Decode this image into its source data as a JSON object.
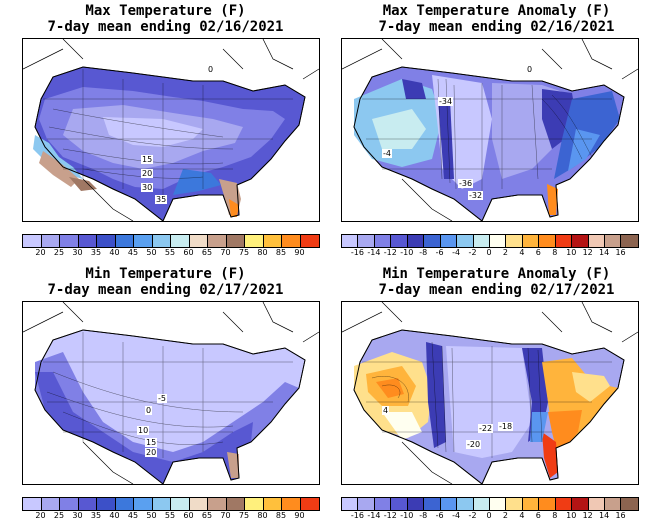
{
  "panels": [
    {
      "id": "max-temp",
      "title_line1": "Max Temperature (F)",
      "title_line2": "7-day mean ending 02/16/2021",
      "colorbar": {
        "ticks": [
          "20",
          "25",
          "30",
          "35",
          "40",
          "45",
          "50",
          "55",
          "60",
          "65",
          "70",
          "75",
          "80",
          "85",
          "90"
        ],
        "colors": [
          "#c8c8ff",
          "#a8a8f0",
          "#8080e6",
          "#5858d2",
          "#3c50c8",
          "#3c78dc",
          "#5aa0f0",
          "#8cc8f0",
          "#c8ecf0",
          "#f0dcc8",
          "#c8a08c",
          "#a07864",
          "#fff07c",
          "#ffc03c",
          "#ff8c1e",
          "#f03c14"
        ]
      },
      "labels": [
        {
          "text": "15",
          "name": "contour-label-15"
        },
        {
          "text": "20",
          "name": "contour-label-20"
        },
        {
          "text": "30",
          "name": "contour-label-30"
        },
        {
          "text": "35",
          "name": "contour-label-35"
        },
        {
          "text": "0",
          "name": "contour-label-0"
        }
      ]
    },
    {
      "id": "max-anom",
      "title_line1": "Max Temperature Anomaly (F)",
      "title_line2": "7-day mean ending 02/16/2021",
      "colorbar": {
        "ticks": [
          "-16",
          "-14",
          "-12",
          "-10",
          "-8",
          "-6",
          "-4",
          "-2",
          "0",
          "2",
          "4",
          "6",
          "8",
          "10",
          "12",
          "14",
          "16"
        ],
        "colors": [
          "#c8c8ff",
          "#a8a8f0",
          "#8080e6",
          "#5858d2",
          "#3c3cb4",
          "#3c64d2",
          "#5a96f0",
          "#8cc8f0",
          "#c8ecf0",
          "#fffff0",
          "#ffe08c",
          "#ffb43c",
          "#ff8c1e",
          "#f03c14",
          "#b41414",
          "#f0c8b4",
          "#c8a08c",
          "#8c6450"
        ]
      },
      "labels": [
        {
          "text": "-34",
          "name": "contour-label-minus34"
        },
        {
          "text": "-4",
          "name": "contour-label-minus4"
        },
        {
          "text": "-36",
          "name": "contour-label-minus36"
        },
        {
          "text": "-32",
          "name": "contour-label-minus32"
        },
        {
          "text": "0",
          "name": "contour-label-0"
        }
      ]
    },
    {
      "id": "min-temp",
      "title_line1": "Min Temperature (F)",
      "title_line2": "7-day mean ending 02/17/2021",
      "colorbar": {
        "ticks": [
          "20",
          "25",
          "30",
          "35",
          "40",
          "45",
          "50",
          "55",
          "60",
          "65",
          "70",
          "75",
          "80",
          "85",
          "90"
        ],
        "colors": [
          "#c8c8ff",
          "#a8a8f0",
          "#8080e6",
          "#5858d2",
          "#3c50c8",
          "#3c78dc",
          "#5aa0f0",
          "#8cc8f0",
          "#c8ecf0",
          "#f0dcc8",
          "#c8a08c",
          "#a07864",
          "#fff07c",
          "#ffc03c",
          "#ff8c1e",
          "#f03c14"
        ]
      },
      "labels": [
        {
          "text": "-5",
          "name": "contour-label-minus5"
        },
        {
          "text": "0",
          "name": "contour-label-0"
        },
        {
          "text": "10",
          "name": "contour-label-10"
        },
        {
          "text": "15",
          "name": "contour-label-15"
        },
        {
          "text": "20",
          "name": "contour-label-20"
        }
      ]
    },
    {
      "id": "min-anom",
      "title_line1": "Min Temperature Anomaly (F)",
      "title_line2": "7-day mean ending 02/17/2021",
      "colorbar": {
        "ticks": [
          "-16",
          "-14",
          "-12",
          "-10",
          "-8",
          "-6",
          "-4",
          "-2",
          "0",
          "2",
          "4",
          "6",
          "8",
          "10",
          "12",
          "14",
          "16"
        ],
        "colors": [
          "#c8c8ff",
          "#a8a8f0",
          "#8080e6",
          "#5858d2",
          "#3c3cb4",
          "#3c64d2",
          "#5a96f0",
          "#8cc8f0",
          "#c8ecf0",
          "#fffff0",
          "#ffe08c",
          "#ffb43c",
          "#ff8c1e",
          "#f03c14",
          "#b41414",
          "#f0c8b4",
          "#c8a08c",
          "#8c6450"
        ]
      },
      "labels": [
        {
          "text": "4",
          "name": "contour-label-4"
        },
        {
          "text": "-22",
          "name": "contour-label-minus22"
        },
        {
          "text": "-18",
          "name": "contour-label-minus18"
        },
        {
          "text": "-20",
          "name": "contour-label-minus20"
        }
      ]
    }
  ]
}
